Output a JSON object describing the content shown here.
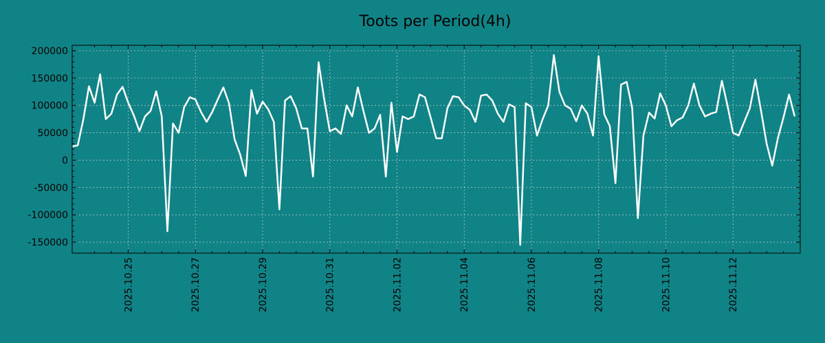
{
  "chart_data": {
    "type": "line",
    "title": "Toots per Period(4h)",
    "xlabel": "",
    "ylabel": "",
    "grid": true,
    "ylim": [
      -170000,
      210000
    ],
    "yticks": [
      200000,
      150000,
      100000,
      50000,
      0,
      -50000,
      -100000,
      -150000
    ],
    "ytick_labels": [
      "200000",
      "150000",
      "100000",
      "50000",
      "0",
      "-50000",
      "-100000",
      "-150000"
    ],
    "xlim": [
      0,
      130
    ],
    "xticks": [
      10,
      22,
      34,
      46,
      58,
      70,
      82,
      94,
      106,
      118
    ],
    "xtick_labels": [
      "2025.10.25",
      "2025.10.27",
      "2025.10.29",
      "2025.10.31",
      "2025.11.02",
      "2025.11.04",
      "2025.11.06",
      "2025.11.08",
      "2025.11.10",
      "2025.11.12"
    ],
    "colors": {
      "background": "#108387",
      "line": "#ffffff",
      "grid": "#cfcfcf",
      "text": "#000000"
    },
    "series": [
      {
        "name": "Toots",
        "values": [
          25000,
          27000,
          75000,
          135000,
          105000,
          157000,
          75000,
          85000,
          120000,
          134000,
          105000,
          82000,
          53000,
          80000,
          90000,
          126000,
          80000,
          -130000,
          67000,
          50000,
          97000,
          115000,
          111000,
          88000,
          70000,
          88000,
          111000,
          133000,
          104000,
          38000,
          10000,
          -29000,
          128000,
          85000,
          107000,
          93000,
          70000,
          -90000,
          109000,
          117000,
          95000,
          58000,
          58000,
          -30000,
          179000,
          111000,
          53000,
          58000,
          48000,
          100000,
          80000,
          133000,
          90000,
          50000,
          58000,
          83000,
          -30000,
          105000,
          15000,
          80000,
          75000,
          80000,
          120000,
          115000,
          78000,
          40000,
          40000,
          95000,
          117000,
          115000,
          100000,
          92000,
          70000,
          118000,
          120000,
          109000,
          85000,
          70000,
          102000,
          97000,
          -155000,
          104000,
          97000,
          45000,
          75000,
          100000,
          192000,
          125000,
          100000,
          94000,
          71000,
          100000,
          85000,
          45000,
          190000,
          84000,
          62000,
          -42000,
          138000,
          143000,
          95000,
          -106000,
          45000,
          87000,
          76000,
          122000,
          100000,
          62000,
          73000,
          78000,
          100000,
          140000,
          100000,
          80000,
          85000,
          88000,
          145000,
          100000,
          50000,
          45000,
          70000,
          95000,
          147000,
          90000,
          30000,
          -10000,
          40000,
          78000,
          120000,
          80000
        ]
      }
    ]
  }
}
